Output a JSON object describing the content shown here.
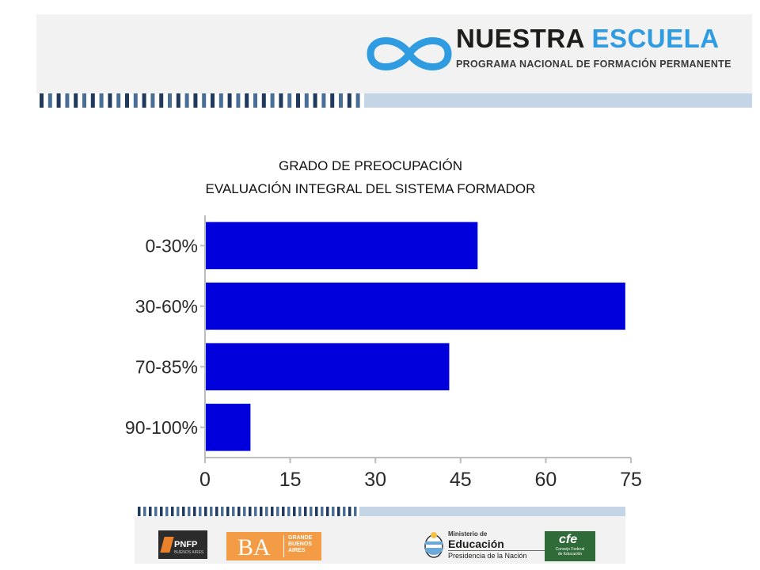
{
  "header": {
    "brand_word1": "NUESTRA",
    "brand_word2": "ESCUELA",
    "brand_subtitle": "PROGRAMA NACIONAL DE FORMACIÓN PERMANENTE",
    "logo_icon": "infinity-logo-icon",
    "colors": {
      "brand_blue": "#2f9be0",
      "dark": "#1d1d1b",
      "stripe_light": "#c4d5e6",
      "stripe_dark": "#1f3a5c"
    }
  },
  "chart_data": {
    "type": "bar",
    "orientation": "horizontal",
    "title": "GRADO DE PREOCUPACIÓN",
    "subtitle": "EVALUACIÓN INTEGRAL DEL SISTEMA FORMADOR",
    "categories": [
      "0-30%",
      "30-60%",
      "70-85%",
      "90-100%"
    ],
    "values": [
      48,
      74,
      43,
      8
    ],
    "xlim": [
      0,
      75
    ],
    "xticks": [
      0,
      15,
      30,
      45,
      60,
      75
    ],
    "bar_color": "#0000dd",
    "grid": false
  },
  "footer": {
    "pnfp": {
      "label": "PNFP",
      "sublabel": "BUENOS AIRES"
    },
    "ba": {
      "label": "BA",
      "sublabel": "GRANDE\nBUENOS\nAIRES",
      "color": "#f39c45"
    },
    "ministerio": {
      "line1": "Ministerio de",
      "line2": "Educación",
      "line3": "Presidencia de la Nación"
    },
    "cfe": {
      "label": "cfe",
      "sublabel": "Consejo Federal\nde Educación",
      "color": "#2f6b38"
    }
  }
}
